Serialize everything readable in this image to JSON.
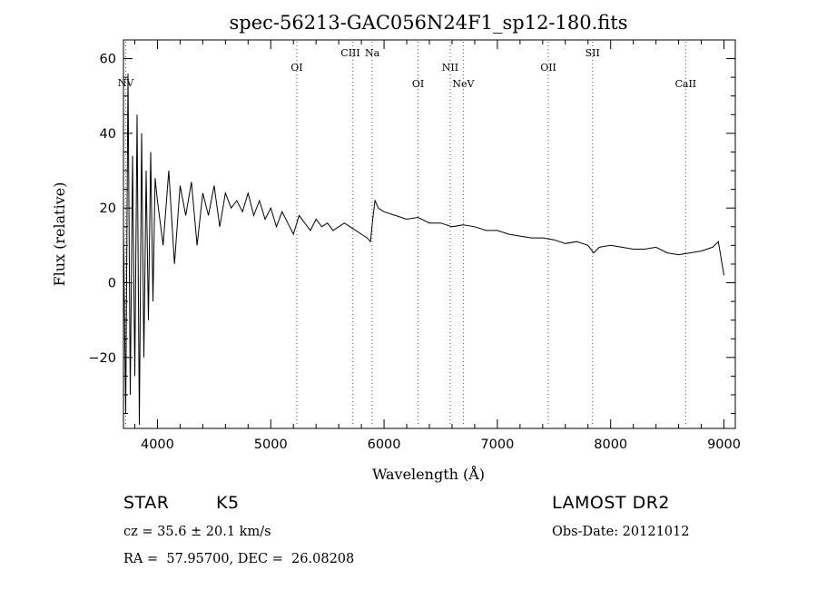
{
  "chart_data": {
    "type": "line",
    "title": "spec-56213-GAC056N24F1_sp12-180.fits",
    "xlabel": "Wavelength (Å)",
    "ylabel": "Flux (relative)",
    "xlim": [
      3700,
      9100
    ],
    "ylim": [
      -39,
      65
    ],
    "xticks": [
      4000,
      5000,
      6000,
      7000,
      8000,
      9000
    ],
    "yticks": [
      -20,
      0,
      20,
      40,
      60
    ],
    "yticks_labels": [
      "−20",
      "0",
      "20",
      "40",
      "60"
    ],
    "grid": false,
    "series": [
      {
        "x": [
          3700,
          3720,
          3740,
          3760,
          3780,
          3800,
          3820,
          3840,
          3860,
          3880,
          3900,
          3920,
          3940,
          3960,
          3980,
          4000,
          4050,
          4100,
          4150,
          4200,
          4250,
          4300,
          4350,
          4400,
          4450,
          4500,
          4550,
          4600,
          4650,
          4700,
          4750,
          4800,
          4850,
          4900,
          4950,
          5000,
          5050,
          5100,
          5150,
          5200,
          5250,
          5300,
          5350,
          5400,
          5450,
          5500,
          5550,
          5600,
          5650,
          5700,
          5750,
          5800,
          5850,
          5880,
          5900,
          5920,
          5950,
          6000,
          6100,
          6200,
          6300,
          6400,
          6500,
          6600,
          6700,
          6800,
          6900,
          7000,
          7100,
          7200,
          7300,
          7400,
          7500,
          7600,
          7700,
          7800,
          7850,
          7900,
          8000,
          8100,
          8200,
          8300,
          8400,
          8500,
          8600,
          8700,
          8800,
          8900,
          8950,
          9000
        ],
        "y": [
          14,
          -35,
          56,
          -30,
          34,
          -25,
          45,
          -38,
          40,
          -20,
          30,
          -10,
          35,
          -5,
          28,
          22,
          10,
          30,
          5,
          26,
          18,
          27,
          10,
          24,
          18,
          26,
          15,
          24,
          20,
          22,
          19,
          24,
          18,
          22,
          17,
          20,
          15,
          19,
          16,
          13,
          18,
          16,
          14,
          17,
          15,
          16,
          14,
          15,
          16,
          15,
          14,
          13,
          12,
          11,
          17,
          22,
          20,
          19,
          18,
          17,
          17.5,
          16,
          16,
          15,
          15.5,
          15,
          14,
          14,
          13,
          12.5,
          12,
          12,
          11.5,
          10.5,
          11,
          10,
          8,
          9.5,
          10,
          9.5,
          9,
          9,
          9.5,
          8,
          7.5,
          8,
          8.5,
          9.5,
          11,
          2
        ]
      }
    ],
    "line_markers": [
      {
        "name": "NV",
        "x": 3720
      },
      {
        "name": "OI",
        "x": 5230
      },
      {
        "name": "CIII",
        "x": 5725
      },
      {
        "name": "Na",
        "x": 5895
      },
      {
        "name": "OI",
        "x": 6300
      },
      {
        "name": "NII",
        "x": 6584
      },
      {
        "name": "NeV",
        "x": 6700
      },
      {
        "name": "OII",
        "x": 7450
      },
      {
        "name": "SII",
        "x": 7840
      },
      {
        "name": "CaII",
        "x": 8662
      }
    ]
  },
  "info": {
    "object_class": "STAR",
    "subclass": "K5",
    "survey": "LAMOST DR2",
    "redshift": "cz = 35.6 ± 20.1 km/s",
    "obs_date": "Obs-Date: 20121012",
    "coords": "RA =  57.95700, DEC =  26.08208"
  }
}
